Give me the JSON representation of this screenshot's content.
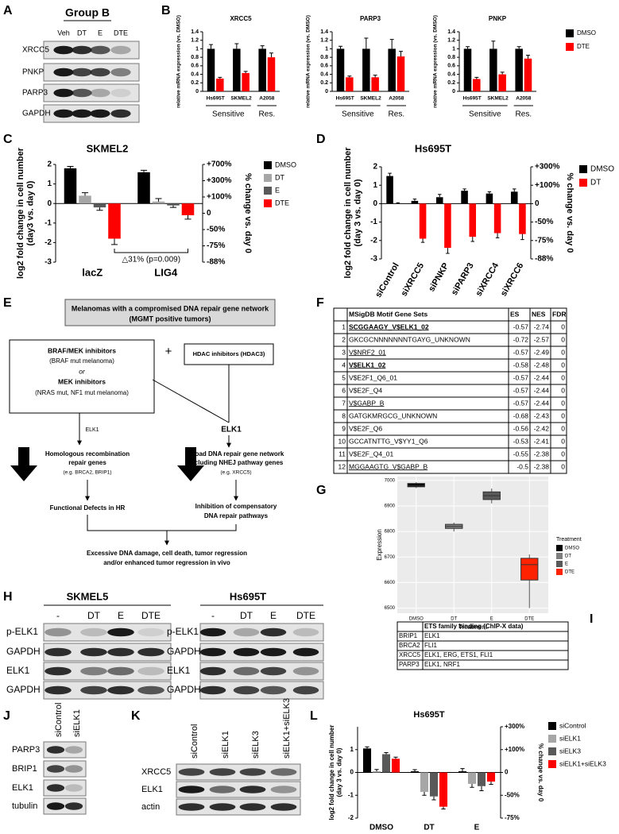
{
  "panel_labels": [
    "A",
    "B",
    "C",
    "D",
    "E",
    "F",
    "G",
    "H",
    "I",
    "J",
    "K",
    "L"
  ],
  "chart_data": [
    {
      "type": "bar",
      "title": "XRCC5",
      "ylabel": "relative mRNA expression (vs. DMSO)",
      "categories": [
        "Hs695T",
        "SKMEL2",
        "A2058"
      ],
      "groups": [
        "Sensitive",
        "Res."
      ],
      "ylim": [
        0,
        1.4
      ],
      "yticks": [
        0,
        0.2,
        0.4,
        0.6,
        0.8,
        1,
        1.2,
        1.4
      ],
      "series": [
        {
          "color": "#000000",
          "values": [
            1,
            1,
            1
          ],
          "errors": [
            0.1,
            0.12,
            0.07
          ]
        },
        {
          "color": "#ff0000",
          "values": [
            0.3,
            0.43,
            0.8
          ],
          "errors": [
            0.03,
            0.04,
            0.1
          ]
        }
      ]
    },
    {
      "type": "bar",
      "title": "PARP3",
      "ylabel": "relative mRNA expression (vs. DMSO)",
      "categories": [
        "Hs695T",
        "SKMEL2",
        "A2058"
      ],
      "groups": [
        "Sensitive",
        "Res."
      ],
      "ylim": [
        0,
        1.4
      ],
      "yticks": [
        0,
        0.2,
        0.4,
        0.6,
        0.8,
        1,
        1.2,
        1.4
      ],
      "series": [
        {
          "color": "#000000",
          "values": [
            1,
            1,
            1
          ],
          "errors": [
            0.06,
            0.25,
            0.22
          ]
        },
        {
          "color": "#ff0000",
          "values": [
            0.33,
            0.33,
            0.82
          ],
          "errors": [
            0.03,
            0.05,
            0.12
          ]
        }
      ]
    },
    {
      "type": "bar",
      "title": "PNKP",
      "ylabel": "relative mRNA expression (vs. DMSO)",
      "categories": [
        "Hs695T",
        "SKMEL2",
        "A2058"
      ],
      "groups": [
        "Sensitive",
        "Res."
      ],
      "ylim": [
        0,
        1.4
      ],
      "yticks": [
        0,
        0.2,
        0.4,
        0.6,
        0.8,
        1,
        1.2,
        1.4
      ],
      "legend": "right",
      "series": [
        {
          "name": "DMSO",
          "color": "#000000",
          "values": [
            1,
            1,
            1
          ],
          "errors": [
            0.05,
            0.18,
            0.05
          ]
        },
        {
          "name": "DTE",
          "color": "#ff0000",
          "values": [
            0.29,
            0.4,
            0.77
          ],
          "errors": [
            0.04,
            0.05,
            0.08
          ]
        }
      ]
    },
    {
      "type": "bar",
      "title": "SKMEL2",
      "ylabel": [
        "log2 fold change in cell number",
        "(day3 vs. day 0)"
      ],
      "y2label": "% change vs. day 0",
      "categories": [
        "lacZ",
        "LIG4"
      ],
      "ylim": [
        -3,
        2
      ],
      "yticks": [
        -3,
        -2,
        -1,
        0,
        1,
        2
      ],
      "y2lim": [
        -3,
        3
      ],
      "y2ticks": [
        {
          "value": -3,
          "label": "-88%"
        },
        {
          "value": -2,
          "label": "-75%"
        },
        {
          "value": -1,
          "label": "-50%"
        },
        0,
        {
          "value": 1,
          "label": "+100%"
        },
        {
          "value": 2,
          "label": "+300%"
        },
        {
          "value": 3,
          "label": "+700%"
        }
      ],
      "annotation": "△31% (p=0.009)",
      "legend": "right",
      "series": [
        {
          "name": "DMSO",
          "color": "#000000",
          "values": [
            1.8,
            1.6
          ],
          "errors": [
            0.1,
            0.1
          ]
        },
        {
          "name": "DT",
          "color": "#a6a6a6",
          "values": [
            0.4,
            0.1
          ],
          "errors": [
            0.15,
            0.15
          ]
        },
        {
          "name": "E",
          "color": "#595959",
          "values": [
            -0.2,
            -0.1
          ],
          "errors": [
            0.15,
            0.1
          ]
        },
        {
          "name": "DTE",
          "color": "#ff0000",
          "values": [
            -1.8,
            -0.6
          ],
          "errors": [
            0.3,
            0.2
          ]
        }
      ]
    },
    {
      "type": "bar",
      "title": "Hs695T",
      "ylabel": [
        "log2 fold change in cell number",
        "(day 3 vs. day 0)"
      ],
      "y2label": "% change vs. day 0",
      "categories": [
        "siControl",
        "siXRCC5",
        "siPNKP",
        "siPARP3",
        "siXRCC4",
        "siXRCC6"
      ],
      "ylim": [
        -3,
        2
      ],
      "yticks": [
        -3,
        -2,
        -1,
        0,
        1,
        2
      ],
      "y2lim": [
        -3,
        2
      ],
      "y2ticks": [
        {
          "value": -3,
          "label": "-88%"
        },
        {
          "value": -2,
          "label": "-75%"
        },
        {
          "value": -1,
          "label": "-50%"
        },
        0,
        {
          "value": 1,
          "label": "+100%"
        },
        {
          "value": 2,
          "label": "+300%"
        }
      ],
      "legend": "right",
      "series": [
        {
          "name": "DMSO",
          "color": "#000000",
          "values": [
            1.5,
            0.15,
            0.35,
            0.7,
            0.55,
            0.65
          ],
          "errors": [
            0.15,
            0.1,
            0.15,
            0.1,
            0.1,
            0.15
          ]
        },
        {
          "name": "DT",
          "color": "#ff0000",
          "values": [
            0,
            -1.9,
            -2.4,
            -1.8,
            -1.6,
            -1.65
          ],
          "errors": [
            0.05,
            0.2,
            0.3,
            0.25,
            0.25,
            0.3
          ]
        }
      ]
    },
    {
      "type": "box",
      "ylabel": "Expression",
      "xlabel": "Treatment",
      "legend_title": "Treatment",
      "categories": [
        "DMSO",
        "DT",
        "E",
        "DTE"
      ],
      "colors": [
        "#000000",
        "#7f7f7f",
        "#595959",
        "#ff2200"
      ],
      "boxes": [
        {
          "min": 6970,
          "q1": 6975,
          "median": 6980,
          "q3": 6988,
          "max": 6993
        },
        {
          "min": 6800,
          "q1": 6812,
          "median": 6820,
          "q3": 6828,
          "max": 6835
        },
        {
          "min": 6910,
          "q1": 6925,
          "median": 6940,
          "q3": 6955,
          "max": 6968
        },
        {
          "min": 6500,
          "q1": 6610,
          "median": 6670,
          "q3": 6695,
          "max": 6710
        }
      ],
      "ylim": [
        6480,
        7015
      ],
      "yticks": [
        6500,
        6600,
        6700,
        6800,
        6900,
        7000
      ],
      "grid": true
    },
    {
      "type": "bar",
      "title": "Hs695T",
      "ylabel": [
        "log2 fold change in cell number",
        "(day 3 vs. day 0)"
      ],
      "y2label": "% change vs. day 0",
      "categories": [
        "DMSO",
        "DT",
        "E"
      ],
      "ylim": [
        -2,
        2
      ],
      "yticks": [
        -2,
        -1,
        0,
        1
      ],
      "y2lim": [
        -2,
        2
      ],
      "y2ticks": [
        {
          "value": -2,
          "label": "-75%"
        },
        {
          "value": -1,
          "label": "-50%"
        },
        0,
        {
          "value": 1,
          "label": "+100%"
        },
        {
          "value": 2,
          "label": "+300%"
        }
      ],
      "legend": "right",
      "series": [
        {
          "name": "siControl",
          "color": "#000000",
          "values": [
            1.05,
            0.05,
            0.05
          ],
          "errors": [
            0.07,
            0.07,
            0.12
          ]
        },
        {
          "name": "siELK1",
          "color": "#a6a6a6",
          "values": [
            0.05,
            -0.85,
            -0.5
          ],
          "errors": [
            0.08,
            0.15,
            0.15
          ]
        },
        {
          "name": "siELK3",
          "color": "#595959",
          "values": [
            0.8,
            -1.05,
            -0.6
          ],
          "errors": [
            0.07,
            0.15,
            0.2
          ]
        },
        {
          "name": "siELK1+siELK3",
          "color": "#ff0000",
          "values": [
            0.6,
            -1.5,
            -0.4
          ],
          "errors": [
            0.07,
            0.1,
            0.12
          ]
        }
      ]
    }
  ],
  "blots": [
    {
      "title": "Group B",
      "lanes": [
        "Veh",
        "DT",
        "E",
        "DTE"
      ],
      "rows": [
        "XRCC5",
        "PNKP",
        "PARP3",
        "GAPDH"
      ]
    },
    {
      "title": "SKMEL5",
      "lanes": [
        "-",
        "DT",
        "E",
        "DTE"
      ],
      "rows": [
        "p-ELK1",
        "GAPDH",
        "ELK1",
        "GAPDH"
      ]
    },
    {
      "title": "Hs695T",
      "lanes": [
        "-",
        "DT",
        "E",
        "DTE"
      ],
      "rows": [
        "p-ELK1",
        "GAPDH",
        "ELK1",
        "GAPDH"
      ]
    },
    {
      "lanes": [
        "siControl",
        "siELK1"
      ],
      "rows": [
        "PARP3",
        "BRIP1",
        "ELK1",
        "tubulin"
      ]
    },
    {
      "lanes": [
        "siControl",
        "siELK1",
        "siELK3",
        "siELK1+siELK3"
      ],
      "rows": [
        "XRCC5",
        "ELK1",
        "actin"
      ]
    }
  ],
  "diagram": {
    "header": [
      "Melanomas with a compromised DNA repair gene network",
      "(MGMT positive tumors)"
    ],
    "left_box": [
      "BRAF/MEK inhibitors",
      "(BRAF mut melanoma)",
      "or",
      "MEK inhibitors",
      "(NRAS mut, NF1 mut melanoma)"
    ],
    "plus": "+",
    "right_box": "HDAC inhibitors (HDAC3)",
    "left_arrow_label": "ELK1",
    "right_node": "ELK1",
    "left_genes": [
      "Homologous recombination",
      "repair genes",
      "(e.g. BRCA2, BRIP1)"
    ],
    "right_genes": [
      "Broad DNA repair gene network",
      "including NHEJ pathway genes",
      "(e.g. XRCC5)"
    ],
    "left_outcome": "Functional Defects in HR",
    "right_outcome": [
      "Inhibition of compensatory",
      "DNA repair pathways"
    ],
    "final": [
      "Excessive DNA damage, cell death, tumor regression",
      "and/or enhanced tumor regression in vivo"
    ]
  },
  "table_f": {
    "header": [
      "",
      "MSigDB Motif Gene Sets",
      "ES",
      "NES",
      "FDR"
    ],
    "rows": [
      {
        "cells": [
          "1",
          "SCGGAAGY_V$ELK1_02",
          "-0.57",
          "-2.74",
          "0"
        ],
        "color": "#2e75b6",
        "bold": true
      },
      {
        "cells": [
          "2",
          "GKCGCNNNNNNNTGAYG_UNKNOWN",
          "-0.72",
          "-2.57",
          "0"
        ]
      },
      {
        "cells": [
          "3",
          "V$NRF2_01",
          "-0.57",
          "-2.49",
          "0"
        ],
        "color": "#2e75b6"
      },
      {
        "cells": [
          "4",
          "V$ELK1_02",
          "-0.58",
          "-2.48",
          "0"
        ],
        "color": "#2e75b6",
        "bold": true
      },
      {
        "cells": [
          "5",
          "V$E2F1_Q6_01",
          "-0.57",
          "-2.44",
          "0"
        ]
      },
      {
        "cells": [
          "6",
          "V$E2F_Q4",
          "-0.57",
          "-2.44",
          "0"
        ]
      },
      {
        "cells": [
          "7",
          "V$GABP_B",
          "-0.57",
          "-2.44",
          "0"
        ],
        "color": "#2e75b6"
      },
      {
        "cells": [
          "8",
          "GATGKMRGCG_UNKNOWN",
          "-0.68",
          "-2.43",
          "0"
        ]
      },
      {
        "cells": [
          "9",
          "V$E2F_Q6",
          "-0.56",
          "-2.42",
          "0"
        ]
      },
      {
        "cells": [
          "10",
          "GCCATNTTG_V$YY1_Q6",
          "-0.53",
          "-2.41",
          "0"
        ]
      },
      {
        "cells": [
          "11",
          "V$E2F_Q4_01",
          "-0.55",
          "-2.38",
          "0"
        ]
      },
      {
        "cells": [
          "12",
          "MGGAAGTG_V$GABP_B",
          "-0.5",
          "-2.38",
          "0"
        ],
        "color": "#2e75b6"
      }
    ]
  },
  "table_i": {
    "header": [
      "",
      "ETS family binding (ChIP-X data)"
    ],
    "rows": [
      [
        "BRIP1",
        "ELK1"
      ],
      [
        "BRCA2",
        "FLI1"
      ],
      [
        "XRCC5",
        "ELK1, ERG, ETS1, FLI1"
      ],
      [
        "PARP3",
        "ELK1, NRF1"
      ]
    ]
  }
}
